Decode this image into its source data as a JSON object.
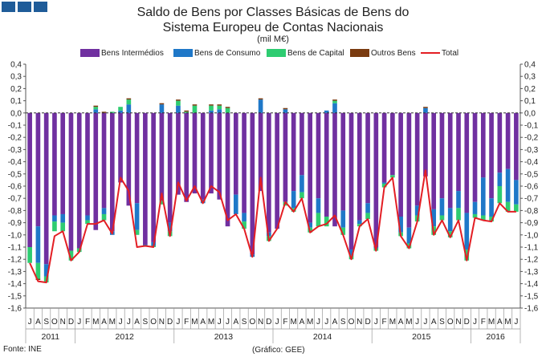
{
  "title_line1": "Saldo de Bens por Classes Básicas de Bens do",
  "title_line2": "Sistema Europeu de Contas Nacionais",
  "units": "(mil M€)",
  "source": "Fonte: INE",
  "credit": "(Gráfico: GEE)",
  "colors": {
    "intermedios": "#7030a0",
    "consumo": "#1f78c8",
    "capital": "#2ecc71",
    "outros": "#7a3b10",
    "total": "#e31e24"
  },
  "chart_data": {
    "type": "bar",
    "stacked": true,
    "ylim": [
      -1.6,
      0.4
    ],
    "yticks": [
      "0,4",
      "0,3",
      "0,2",
      "0,1",
      "0,0",
      "-0,1",
      "-0,2",
      "-0,3",
      "-0,4",
      "-0,5",
      "-0,6",
      "-0,7",
      "-0,8",
      "-0,9",
      "-1,0",
      "-1,1",
      "-1,2",
      "-1,3",
      "-1,4",
      "-1,5",
      "-1,6"
    ],
    "categories": [
      "J",
      "A",
      "S",
      "O",
      "N",
      "D",
      "J",
      "F",
      "M",
      "A",
      "M",
      "J",
      "J",
      "A",
      "S",
      "O",
      "N",
      "D",
      "J",
      "F",
      "M",
      "A",
      "M",
      "J",
      "J",
      "A",
      "S",
      "O",
      "N",
      "D",
      "J",
      "F",
      "M",
      "A",
      "M",
      "J",
      "J",
      "A",
      "S",
      "O",
      "N",
      "D",
      "J",
      "F",
      "M",
      "A",
      "M",
      "J",
      "J",
      "A",
      "S",
      "O",
      "N",
      "D",
      "J",
      "F",
      "M",
      "A",
      "M",
      "J"
    ],
    "years": [
      {
        "label": "2011",
        "start": 0,
        "end": 5
      },
      {
        "label": "2012",
        "start": 6,
        "end": 17
      },
      {
        "label": "2013",
        "start": 18,
        "end": 29
      },
      {
        "label": "2014",
        "start": 30,
        "end": 41
      },
      {
        "label": "2015",
        "start": 42,
        "end": 53
      },
      {
        "label": "2016",
        "start": 54,
        "end": 59
      }
    ],
    "legend": [
      "Bens Intermédios",
      "Bens de Consumo",
      "Bens de Capital",
      "Outros Bens",
      "Total"
    ],
    "grid": false,
    "series": [
      {
        "name": "Bens Intermédios",
        "values": [
          -1.1,
          -0.93,
          -1.24,
          -0.84,
          -0.83,
          -1.13,
          -1.11,
          -0.84,
          -0.96,
          -0.78,
          -0.97,
          -0.57,
          -0.76,
          -0.74,
          -1.08,
          -1.06,
          -0.72,
          -0.9,
          -0.67,
          -0.73,
          -0.66,
          -0.71,
          -0.66,
          -0.71,
          -0.93,
          -0.67,
          -0.82,
          -1.16,
          -0.64,
          -0.98,
          -0.95,
          -0.73,
          -0.64,
          -0.51,
          -0.9,
          -0.7,
          -0.85,
          -0.93,
          -0.8,
          -1.12,
          -0.88,
          -0.74,
          -1.1,
          -0.57,
          -0.51,
          -0.85,
          -0.94,
          -0.76,
          -0.52,
          -0.79,
          -0.7,
          -0.78,
          -0.64,
          -0.82,
          -0.73,
          -0.53,
          -0.7,
          -0.49,
          -0.46,
          -0.55
        ]
      },
      {
        "name": "Bens de Consumo",
        "values": [
          0.0,
          -0.3,
          -0.1,
          -0.05,
          -0.07,
          0.0,
          0.0,
          -0.04,
          0.03,
          -0.05,
          -0.03,
          0.02,
          0.07,
          -0.22,
          -0.01,
          -0.03,
          0.07,
          -0.07,
          0.06,
          0.0,
          0.0,
          -0.03,
          0.02,
          0.03,
          0.0,
          -0.16,
          -0.07,
          -0.02,
          0.11,
          -0.03,
          0.0,
          0.03,
          -0.14,
          -0.14,
          -0.04,
          -0.12,
          0.02,
          0.08,
          -0.14,
          -0.05,
          -0.03,
          -0.08,
          -0.01,
          -0.01,
          0.0,
          -0.13,
          -0.13,
          -0.08,
          0.04,
          -0.14,
          -0.14,
          -0.19,
          -0.14,
          -0.3,
          -0.1,
          -0.31,
          -0.15,
          -0.11,
          -0.27,
          -0.2
        ]
      },
      {
        "name": "Bens de Capital",
        "values": [
          -0.13,
          -0.13,
          -0.05,
          -0.08,
          -0.07,
          -0.08,
          -0.03,
          -0.03,
          0.02,
          -0.05,
          0.01,
          0.03,
          0.04,
          -0.04,
          0.0,
          -0.01,
          -0.03,
          -0.04,
          0.04,
          0.01,
          0.06,
          0.0,
          0.04,
          0.03,
          0.04,
          0.0,
          -0.06,
          0.0,
          0.0,
          -0.04,
          0.0,
          -0.03,
          -0.03,
          -0.05,
          -0.04,
          -0.11,
          -0.08,
          0.02,
          -0.06,
          -0.03,
          -0.02,
          -0.05,
          -0.02,
          -0.03,
          -0.02,
          -0.03,
          -0.04,
          -0.05,
          0.0,
          -0.07,
          -0.04,
          -0.05,
          -0.1,
          -0.09,
          -0.03,
          -0.04,
          -0.04,
          -0.14,
          -0.08,
          -0.06
        ]
      },
      {
        "name": "Outros Bens",
        "values": [
          0.0,
          -0.01,
          0.0,
          0.0,
          0.0,
          0.0,
          0.0,
          0.0,
          0.01,
          0.01,
          0.0,
          0.0,
          0.01,
          0.0,
          0.0,
          0.0,
          0.01,
          0.0,
          0.01,
          0.01,
          0.01,
          0.0,
          0.01,
          0.01,
          0.01,
          0.0,
          0.0,
          0.0,
          0.01,
          0.0,
          0.0,
          0.01,
          0.0,
          0.0,
          0.0,
          0.0,
          0.0,
          0.01,
          0.0,
          0.0,
          0.0,
          0.0,
          0.0,
          0.0,
          0.0,
          0.0,
          0.0,
          0.0,
          0.01,
          0.0,
          0.0,
          0.0,
          0.0,
          0.0,
          0.0,
          0.0,
          0.0,
          0.0,
          0.0,
          0.0
        ]
      },
      {
        "name": "Total",
        "type": "line",
        "values": [
          -1.23,
          -1.38,
          -1.39,
          -1.01,
          -0.97,
          -1.21,
          -1.14,
          -0.91,
          -0.91,
          -0.88,
          -0.99,
          -0.53,
          -0.64,
          -1.1,
          -1.09,
          -1.1,
          -0.66,
          -1.01,
          -0.57,
          -0.72,
          -0.6,
          -0.74,
          -0.6,
          -0.65,
          -0.88,
          -0.83,
          -0.95,
          -1.18,
          -0.53,
          -1.05,
          -0.95,
          -0.73,
          -0.81,
          -0.7,
          -0.98,
          -0.93,
          -0.91,
          -0.84,
          -1.0,
          -1.2,
          -0.93,
          -0.87,
          -1.13,
          -0.61,
          -0.53,
          -1.01,
          -1.11,
          -0.89,
          -0.47,
          -1.0,
          -0.88,
          -1.02,
          -0.88,
          -1.21,
          -0.86,
          -0.88,
          -0.89,
          -0.74,
          -0.81,
          -0.81
        ]
      }
    ]
  }
}
